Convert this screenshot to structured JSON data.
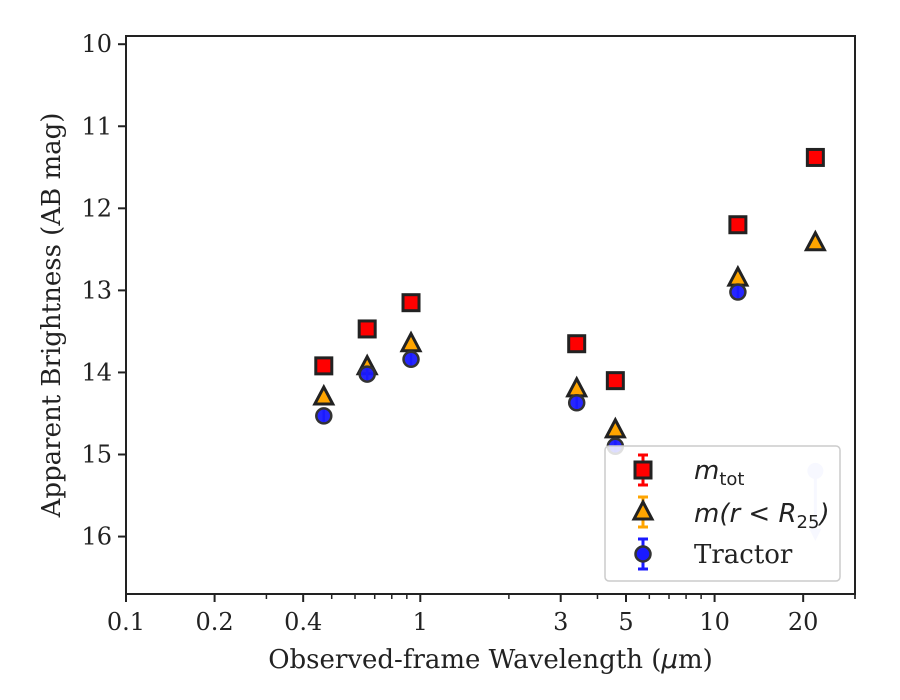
{
  "chart_data": {
    "type": "scatter",
    "xscale": "log",
    "xlim": [
      0.1,
      30
    ],
    "ylim": [
      16.7,
      9.9
    ],
    "y_inverted": true,
    "xlabel_pre": "Observed-frame Wavelength (",
    "xlabel_mu": "μ",
    "xlabel_post": "m)",
    "ylabel": "Apparent Brightness (AB mag)",
    "x_ticks": [
      {
        "v": 0.1,
        "label": "0.1"
      },
      {
        "v": 0.2,
        "label": "0.2"
      },
      {
        "v": 0.4,
        "label": "0.4"
      },
      {
        "v": 1,
        "label": "1"
      },
      {
        "v": 3,
        "label": "3"
      },
      {
        "v": 5,
        "label": "5"
      },
      {
        "v": 10,
        "label": "10"
      },
      {
        "v": 20,
        "label": "20"
      }
    ],
    "y_ticks": [
      {
        "v": 10,
        "label": "10"
      },
      {
        "v": 11,
        "label": "11"
      },
      {
        "v": 12,
        "label": "12"
      },
      {
        "v": 13,
        "label": "13"
      },
      {
        "v": 14,
        "label": "14"
      },
      {
        "v": 15,
        "label": "15"
      },
      {
        "v": 16,
        "label": "16"
      }
    ],
    "grid": false,
    "legend_position": "lower-right",
    "series": [
      {
        "name": "m_tot",
        "name_main": "m",
        "name_sub": "tot",
        "marker": "square",
        "color": "#ff0000",
        "errcolor": "#ff0000",
        "x": [
          0.47,
          0.66,
          0.93,
          3.4,
          4.6,
          12,
          22
        ],
        "y": [
          13.92,
          13.47,
          13.15,
          13.65,
          14.1,
          12.2,
          11.38
        ]
      },
      {
        "name": "m(r<R25)",
        "name_main": "m(r < R",
        "name_sub": "25",
        "name_end": ")",
        "marker": "triangle",
        "color": "#ffa500",
        "errcolor": "#ffa500",
        "x": [
          0.47,
          0.66,
          0.93,
          3.4,
          4.6,
          12,
          22
        ],
        "y": [
          14.3,
          13.93,
          13.65,
          14.2,
          14.7,
          12.85,
          12.42
        ]
      },
      {
        "name": "Tractor",
        "marker": "circle",
        "color": "#1a1aff",
        "errcolor": "#1a1aff",
        "x": [
          0.47,
          0.66,
          0.93,
          3.4,
          4.6,
          12
        ],
        "y": [
          14.53,
          14.02,
          13.84,
          14.37,
          14.9,
          13.02
        ],
        "upper_limit": {
          "x": 22,
          "y": 15.2,
          "color": "#c8ccff"
        }
      }
    ]
  }
}
